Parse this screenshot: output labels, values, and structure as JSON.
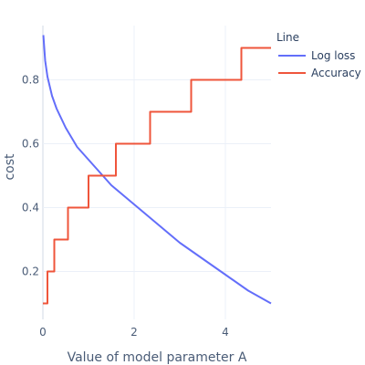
{
  "chart_data": {
    "type": "line",
    "xlabel": "Value of model parameter A",
    "ylabel": "cost",
    "xlim": [
      0,
      5
    ],
    "ylim": [
      0.05,
      0.97
    ],
    "x_ticks": [
      0,
      2,
      4
    ],
    "x_tick_labels": [
      "0",
      "2",
      "4"
    ],
    "y_ticks": [
      0.2,
      0.4,
      0.6,
      0.8
    ],
    "y_tick_labels": [
      "0.2",
      "0.4",
      "0.6",
      "0.8"
    ],
    "grid": true,
    "legend": {
      "title": "Line",
      "placement": "top-right"
    },
    "series": [
      {
        "name": "Log loss",
        "color": "#636efa",
        "x": [
          0.01,
          0.05,
          0.1,
          0.2,
          0.3,
          0.5,
          0.75,
          1.0,
          1.25,
          1.5,
          1.75,
          2.0,
          2.5,
          3.0,
          3.5,
          4.0,
          4.5,
          5.0
        ],
        "y": [
          0.94,
          0.86,
          0.81,
          0.75,
          0.71,
          0.65,
          0.59,
          0.55,
          0.51,
          0.47,
          0.44,
          0.41,
          0.35,
          0.29,
          0.24,
          0.19,
          0.14,
          0.1
        ]
      },
      {
        "name": "Accuracy",
        "color": "#ef553b",
        "shape": "step",
        "x": [
          0,
          0.1,
          0.25,
          0.55,
          1.0,
          1.6,
          2.35,
          3.25,
          4.35,
          5.0
        ],
        "y": [
          0.1,
          0.2,
          0.3,
          0.4,
          0.5,
          0.6,
          0.7,
          0.8,
          0.9,
          0.9
        ]
      }
    ]
  }
}
